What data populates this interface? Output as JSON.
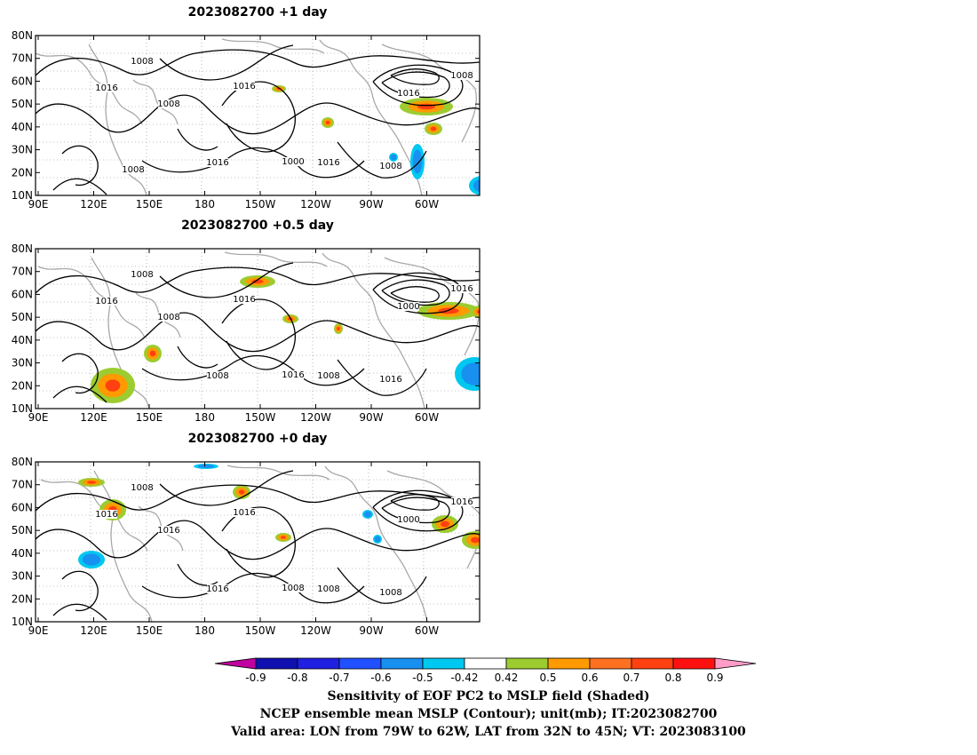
{
  "panels": [
    {
      "title": "2023082700  +1 day",
      "contour_labels": [
        "1008",
        "1016",
        "1008",
        "1016",
        "1000",
        "1016",
        "1008",
        "1008",
        "1016",
        "1016",
        "1008"
      ],
      "shading": {
        "positive": [
          [
            266,
            56,
            16,
            8
          ],
          [
            322,
            92,
            14,
            12
          ],
          [
            500,
            96,
            18,
            14
          ],
          [
            92,
            186,
            36,
            26
          ],
          [
            438,
            98,
            20,
            14
          ],
          [
            410,
            70,
            60,
            20
          ]
        ],
        "negative": [
          [
            422,
            122,
            16,
            40
          ],
          [
            488,
            158,
            30,
            22
          ],
          [
            398,
            132,
            10,
            10
          ]
        ]
      }
    },
    {
      "title": "2023082700  +0.5 day",
      "contour_labels": [
        "1008",
        "1016",
        "1008",
        "1016",
        "1016",
        "1000",
        "1016",
        "1016",
        "1008",
        "1008"
      ],
      "shading": {
        "positive": [
          [
            230,
            30,
            40,
            14
          ],
          [
            278,
            74,
            18,
            10
          ],
          [
            430,
            60,
            70,
            20
          ],
          [
            490,
            64,
            20,
            14
          ],
          [
            62,
            134,
            50,
            40
          ],
          [
            122,
            108,
            20,
            20
          ],
          [
            336,
            84,
            10,
            12
          ]
        ],
        "negative": [
          [
            472,
            122,
            44,
            38
          ]
        ]
      }
    },
    {
      "title": "2023082700  +0 day",
      "contour_labels": [
        "1008",
        "1016",
        "1016",
        "1016",
        "1008",
        "1000",
        "1016",
        "1008",
        "1016",
        "1008"
      ],
      "shading": {
        "positive": [
          [
            222,
            26,
            20,
            16
          ],
          [
            72,
            42,
            30,
            24
          ],
          [
            446,
            60,
            30,
            20
          ],
          [
            480,
            78,
            30,
            20
          ],
          [
            270,
            80,
            18,
            10
          ],
          [
            48,
            18,
            30,
            10
          ]
        ],
        "negative": [
          [
            178,
            2,
            28,
            6
          ],
          [
            48,
            100,
            30,
            20
          ],
          [
            368,
            54,
            12,
            10
          ],
          [
            380,
            82,
            10,
            10
          ]
        ]
      }
    }
  ],
  "axes": {
    "lat_ticks": [
      "80N",
      "70N",
      "60N",
      "50N",
      "40N",
      "30N",
      "20N",
      "10N"
    ],
    "lon_ticks": [
      "90E",
      "120E",
      "150E",
      "180",
      "150W",
      "120W",
      "90W",
      "60W"
    ]
  },
  "colorbar": {
    "levels": [
      "-0.9",
      "-0.8",
      "-0.7",
      "-0.6",
      "-0.5",
      "-0.42",
      "0.42",
      "0.5",
      "0.6",
      "0.7",
      "0.8",
      "0.9"
    ],
    "colors": [
      "#1010b0",
      "#2020e0",
      "#2050ff",
      "#1890f0",
      "#00c8f0",
      "#ffffff",
      "#9ccc30",
      "#ff9a00",
      "#ff7020",
      "#ff4010",
      "#ff1010"
    ],
    "low_extend_color": "#c000a0",
    "high_extend_color": "#ff9cc8"
  },
  "captions": [
    "Sensitivity of EOF PC2 to MSLP field (Shaded)",
    "NCEP ensemble mean MSLP (Contour); unit(mb); IT:2023082700",
    "Valid area: LON from 79W to 62W, LAT from 32N to 45N; VT: 2023083100"
  ]
}
